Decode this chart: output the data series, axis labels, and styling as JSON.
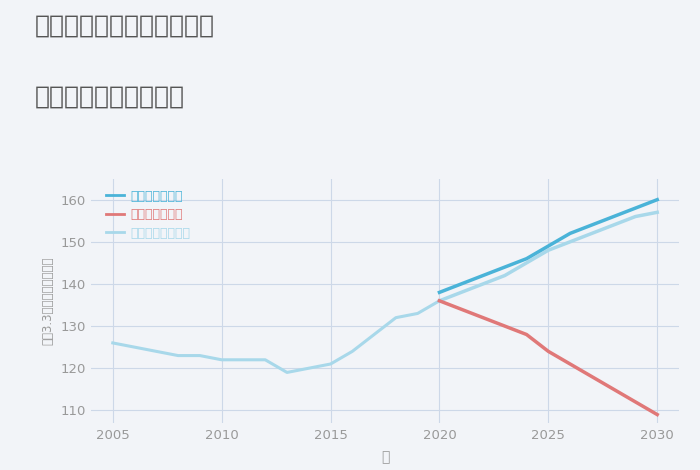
{
  "title_line1": "兵庫県西宮市今津社前町の",
  "title_line2": "中古戸建ての価格推移",
  "xlabel": "年",
  "ylabel": "坪（3.3㎡）単価（万円）",
  "background_color": "#f2f4f8",
  "plot_bg_color": "#f2f4f8",
  "ylim": [
    107,
    165
  ],
  "xlim": [
    2004,
    2031
  ],
  "yticks": [
    110,
    120,
    130,
    140,
    150,
    160
  ],
  "xticks": [
    2005,
    2010,
    2015,
    2020,
    2025,
    2030
  ],
  "historical_years": [
    2005,
    2006,
    2007,
    2008,
    2009,
    2010,
    2011,
    2012,
    2013,
    2014,
    2015,
    2016,
    2017,
    2018,
    2019,
    2020
  ],
  "historical_values": [
    126,
    125,
    124,
    123,
    123,
    122,
    122,
    122,
    119,
    120,
    121,
    124,
    128,
    132,
    133,
    136
  ],
  "good_years": [
    2020,
    2021,
    2022,
    2023,
    2024,
    2025,
    2026,
    2027,
    2028,
    2029,
    2030
  ],
  "good_values": [
    138,
    140,
    142,
    144,
    146,
    149,
    152,
    154,
    156,
    158,
    160
  ],
  "bad_years": [
    2020,
    2021,
    2022,
    2023,
    2024,
    2025,
    2026,
    2027,
    2028,
    2029,
    2030
  ],
  "bad_values": [
    136,
    134,
    132,
    130,
    128,
    124,
    121,
    118,
    115,
    112,
    109
  ],
  "normal_years": [
    2020,
    2021,
    2022,
    2023,
    2024,
    2025,
    2026,
    2027,
    2028,
    2029,
    2030
  ],
  "normal_values": [
    136,
    138,
    140,
    142,
    145,
    148,
    150,
    152,
    154,
    156,
    157
  ],
  "color_good": "#4ab3d8",
  "color_bad": "#e07878",
  "color_normal": "#a8d8ea",
  "color_historical": "#a8d8ea",
  "legend_good": "グッドシナリオ",
  "legend_bad": "バッドシナリオ",
  "legend_normal": "ノーマルシナリオ",
  "grid_color": "#cdd8e8",
  "title_color": "#555555",
  "tick_color": "#999999",
  "label_color": "#999999"
}
